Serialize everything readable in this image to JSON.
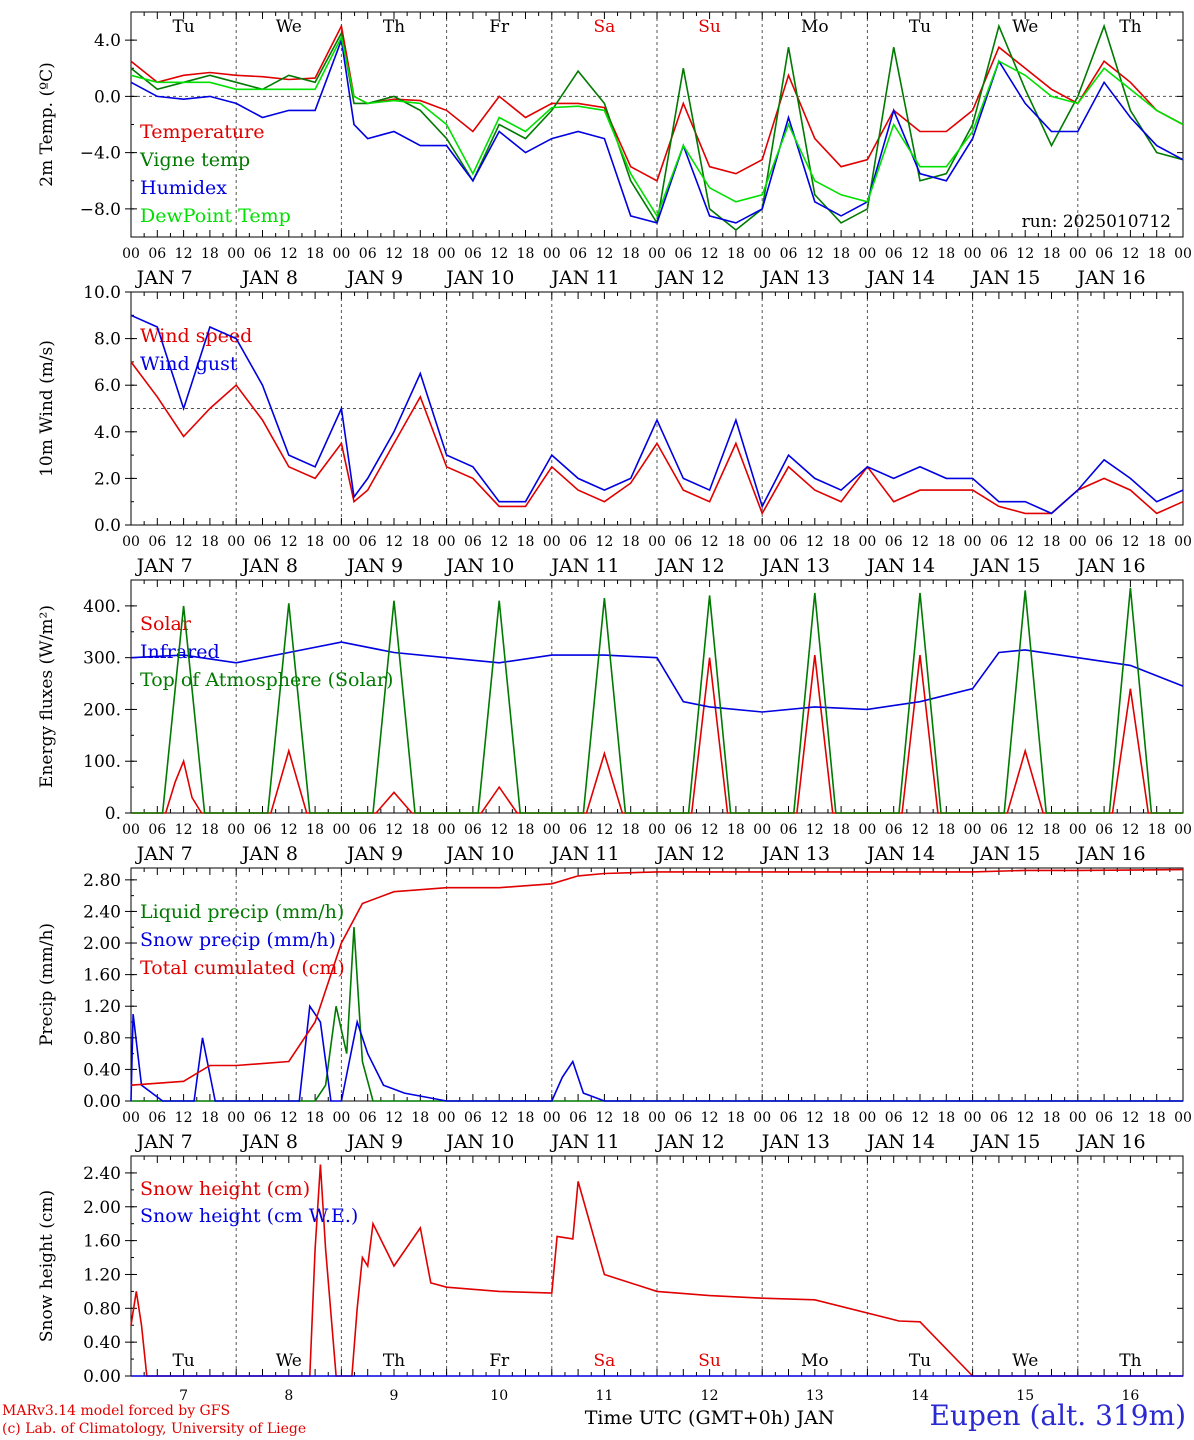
{
  "colors": {
    "red": "#e00000",
    "green": "#007a00",
    "blue": "#0000e0",
    "lightgreen": "#00e000",
    "gray": "#666666"
  },
  "footer": {
    "credit_line1": "MARv3.14 model forced by GFS",
    "credit_line2": "(c) Lab. of Climatology, University of Liege",
    "station": "Eupen (alt. 319m)",
    "run_label": "run: 2025010712"
  },
  "time_axis": {
    "hour_labels": [
      "00",
      "06",
      "12",
      "18"
    ],
    "date_labels": [
      "JAN  7",
      "JAN  8",
      "JAN  9",
      "JAN 10",
      "JAN 11",
      "JAN 12",
      "JAN 13",
      "JAN 14",
      "JAN 15",
      "JAN 16"
    ],
    "day_names": [
      "Tu",
      "We",
      "Th",
      "Fr",
      "Sa",
      "Su",
      "Mo",
      "Tu",
      "We",
      "Th"
    ],
    "weekend_days": [
      4,
      5
    ],
    "day_numbers": [
      "7",
      "8",
      "9",
      "10",
      "11",
      "12",
      "13",
      "14",
      "15",
      "16"
    ],
    "bottom_title": "Time UTC (GMT+0h) JAN",
    "start_date": "2025-01-07T00:00Z",
    "n_days": 10
  },
  "chart_data": [
    {
      "type": "line",
      "ylabel": "2m Temp. (ºC)",
      "ylim": [
        -10,
        6
      ],
      "yticks": [
        -8,
        -4,
        0,
        4
      ],
      "ytick_labels": [
        "−8.0",
        "−4.0",
        "0.0",
        "4.0"
      ],
      "ref_line": 0,
      "series": [
        {
          "name": "Temperature",
          "color": "red",
          "x": [
            0,
            0.25,
            0.5,
            0.75,
            1,
            1.25,
            1.5,
            1.75,
            2,
            2.12,
            2.25,
            2.5,
            2.75,
            3,
            3.25,
            3.5,
            3.75,
            4,
            4.25,
            4.5,
            4.75,
            5,
            5.25,
            5.5,
            5.75,
            6,
            6.25,
            6.5,
            6.75,
            7,
            7.25,
            7.5,
            7.75,
            8,
            8.25,
            8.5,
            8.75,
            9,
            9.25,
            9.5,
            9.75,
            10
          ],
          "values": [
            2.5,
            1,
            1.5,
            1.7,
            1.5,
            1.4,
            1.2,
            1.3,
            5,
            0,
            -0.5,
            -0.2,
            -0.3,
            -1,
            -2.5,
            0,
            -1.5,
            -0.5,
            -0.5,
            -0.8,
            -5,
            -6,
            -0.5,
            -5,
            -5.5,
            -4.5,
            1.5,
            -3,
            -5,
            -4.5,
            -1,
            -2.5,
            -2.5,
            -1,
            3.5,
            2,
            0.5,
            -0.5,
            2.5,
            1,
            -1,
            -2
          ]
        },
        {
          "name": "Vigne temp",
          "color": "green",
          "x": [
            0,
            0.25,
            0.5,
            0.75,
            1,
            1.25,
            1.5,
            1.75,
            2,
            2.12,
            2.25,
            2.5,
            2.75,
            3,
            3.25,
            3.5,
            3.75,
            4,
            4.25,
            4.5,
            4.75,
            5,
            5.25,
            5.5,
            5.75,
            6,
            6.25,
            6.5,
            6.75,
            7,
            7.25,
            7.5,
            7.75,
            8,
            8.25,
            8.5,
            8.75,
            9,
            9.25,
            9.5,
            9.75,
            10
          ],
          "values": [
            2,
            0.5,
            1,
            1.5,
            1,
            0.5,
            1.5,
            1,
            4.5,
            -0.5,
            -0.5,
            0,
            -1,
            -3,
            -6,
            -2,
            -3,
            -1,
            1.8,
            -0.5,
            -6,
            -9,
            2,
            -8,
            -9.5,
            -8,
            3.5,
            -7,
            -9,
            -8,
            3.5,
            -6,
            -5.5,
            -2,
            5,
            0.5,
            -3.5,
            0,
            5,
            -1,
            -4,
            -4.5
          ]
        },
        {
          "name": "Humidex",
          "color": "blue",
          "x": [
            0,
            0.25,
            0.5,
            0.75,
            1,
            1.25,
            1.5,
            1.75,
            2,
            2.12,
            2.25,
            2.5,
            2.75,
            3,
            3.25,
            3.5,
            3.75,
            4,
            4.25,
            4.5,
            4.75,
            5,
            5.25,
            5.5,
            5.75,
            6,
            6.25,
            6.5,
            6.75,
            7,
            7.25,
            7.5,
            7.75,
            8,
            8.25,
            8.5,
            8.75,
            9,
            9.25,
            9.5,
            9.75,
            10
          ],
          "values": [
            1,
            0,
            -0.2,
            0,
            -0.5,
            -1.5,
            -1,
            -1,
            4,
            -2,
            -3,
            -2.5,
            -3.5,
            -3.5,
            -6,
            -2.5,
            -4,
            -3,
            -2.5,
            -3,
            -8.5,
            -9,
            -3.5,
            -8.5,
            -9,
            -8,
            -1.5,
            -7.5,
            -8.5,
            -7.5,
            -1,
            -5.5,
            -6,
            -3,
            2.5,
            -0.5,
            -2.5,
            -2.5,
            1,
            -1.5,
            -3.5,
            -4.5
          ]
        },
        {
          "name": "DewPoint Temp",
          "color": "lightgreen",
          "x": [
            0,
            0.25,
            0.5,
            0.75,
            1,
            1.25,
            1.5,
            1.75,
            2,
            2.12,
            2.25,
            2.5,
            2.75,
            3,
            3.25,
            3.5,
            3.75,
            4,
            4.25,
            4.5,
            4.75,
            5,
            5.25,
            5.5,
            5.75,
            6,
            6.25,
            6.5,
            6.75,
            7,
            7.25,
            7.5,
            7.75,
            8,
            8.25,
            8.5,
            8.75,
            9,
            9.25,
            9.5,
            9.75,
            10
          ],
          "values": [
            1.5,
            1,
            1,
            1,
            0.5,
            0.5,
            0.5,
            0.5,
            4.2,
            0,
            -0.5,
            -0.3,
            -0.5,
            -2,
            -5.5,
            -1.5,
            -2.5,
            -0.8,
            -0.7,
            -1,
            -5.5,
            -8.5,
            -3.5,
            -6.5,
            -7.5,
            -7,
            -2,
            -6,
            -7,
            -7.5,
            -2,
            -5,
            -5,
            -2.5,
            2.5,
            1.5,
            0,
            -0.5,
            2,
            0.5,
            -1,
            -2
          ]
        }
      ]
    },
    {
      "type": "line",
      "ylabel": "10m Wind (m/s)",
      "ylim": [
        0,
        10
      ],
      "yticks": [
        0,
        2,
        4,
        6,
        8,
        10
      ],
      "ytick_labels": [
        "0.0",
        "2.0",
        "4.0",
        "6.0",
        "8.0",
        "10.0"
      ],
      "ref_line": 5,
      "series": [
        {
          "name": "Wind speed",
          "color": "red",
          "x": [
            0,
            0.25,
            0.5,
            0.75,
            1,
            1.25,
            1.5,
            1.75,
            2,
            2.12,
            2.25,
            2.5,
            2.75,
            3,
            3.25,
            3.5,
            3.75,
            4,
            4.25,
            4.5,
            4.75,
            5,
            5.25,
            5.5,
            5.75,
            6,
            6.25,
            6.5,
            6.75,
            7,
            7.25,
            7.5,
            7.75,
            8,
            8.25,
            8.5,
            8.75,
            9,
            9.25,
            9.5,
            9.75,
            10
          ],
          "values": [
            7,
            5.5,
            3.8,
            5,
            6,
            4.5,
            2.5,
            2,
            3.5,
            1,
            1.5,
            3.5,
            5.5,
            2.5,
            2,
            0.8,
            0.8,
            2.5,
            1.5,
            1,
            1.8,
            3.5,
            1.5,
            1,
            3.5,
            0.5,
            2.5,
            1.5,
            1,
            2.5,
            1,
            1.5,
            1.5,
            1.5,
            0.8,
            0.5,
            0.5,
            1.5,
            2,
            1.5,
            0.5,
            1
          ]
        },
        {
          "name": "Wind gust",
          "color": "blue",
          "x": [
            0,
            0.25,
            0.5,
            0.75,
            1,
            1.25,
            1.5,
            1.75,
            2,
            2.12,
            2.25,
            2.5,
            2.75,
            3,
            3.25,
            3.5,
            3.75,
            4,
            4.25,
            4.5,
            4.75,
            5,
            5.25,
            5.5,
            5.75,
            6,
            6.25,
            6.5,
            6.75,
            7,
            7.25,
            7.5,
            7.75,
            8,
            8.25,
            8.5,
            8.75,
            9,
            9.25,
            9.5,
            9.75,
            10
          ],
          "values": [
            9,
            8.5,
            5,
            8.5,
            8,
            6,
            3,
            2.5,
            5,
            1.2,
            2,
            4,
            6.5,
            3,
            2.5,
            1,
            1,
            3,
            2,
            1.5,
            2,
            4.5,
            2,
            1.5,
            4.5,
            0.8,
            3,
            2,
            1.5,
            2.5,
            2,
            2.5,
            2,
            2,
            1,
            1,
            0.5,
            1.5,
            2.8,
            2,
            1,
            1.5
          ]
        }
      ]
    },
    {
      "type": "line",
      "ylabel": "Energy fluxes (W/m²)",
      "ylim": [
        0,
        450
      ],
      "yticks": [
        0,
        100,
        200,
        300,
        400
      ],
      "ytick_labels": [
        "0.",
        "100.",
        "200.",
        "300.",
        "400."
      ],
      "series": [
        {
          "name": "Solar",
          "color": "red",
          "x": [
            0,
            0.33,
            0.42,
            0.5,
            0.58,
            0.67,
            1,
            1.33,
            1.5,
            1.67,
            2,
            2.33,
            2.5,
            2.67,
            3,
            3.33,
            3.5,
            3.67,
            4,
            4.33,
            4.5,
            4.67,
            5,
            5.33,
            5.5,
            5.67,
            6,
            6.33,
            6.5,
            6.67,
            7,
            7.33,
            7.5,
            7.67,
            8,
            8.33,
            8.5,
            8.67,
            9,
            9.33,
            9.5,
            9.67,
            10
          ],
          "values": [
            0,
            0,
            60,
            100,
            30,
            0,
            0,
            0,
            120,
            0,
            0,
            0,
            40,
            0,
            0,
            0,
            50,
            0,
            0,
            0,
            115,
            0,
            0,
            0,
            300,
            0,
            0,
            0,
            305,
            0,
            0,
            0,
            305,
            0,
            0,
            0,
            120,
            0,
            0,
            0,
            240,
            0,
            0
          ]
        },
        {
          "name": "Infrared",
          "color": "blue",
          "x": [
            0,
            0.5,
            1,
            1.5,
            2,
            2.5,
            3,
            3.5,
            4,
            4.5,
            5,
            5.25,
            5.5,
            6,
            6.5,
            7,
            7.5,
            8,
            8.25,
            8.5,
            9,
            9.5,
            10
          ],
          "values": [
            300,
            305,
            290,
            310,
            330,
            310,
            300,
            290,
            305,
            305,
            300,
            215,
            205,
            195,
            205,
            200,
            215,
            240,
            310,
            315,
            300,
            285,
            245
          ]
        },
        {
          "name": "Top of Atmosphere (Solar)",
          "color": "green",
          "x": [
            0,
            0.3,
            0.5,
            0.7,
            1,
            1.3,
            1.5,
            1.7,
            2,
            2.3,
            2.5,
            2.7,
            3,
            3.3,
            3.5,
            3.7,
            4,
            4.3,
            4.5,
            4.7,
            5,
            5.3,
            5.5,
            5.7,
            6,
            6.3,
            6.5,
            6.7,
            7,
            7.3,
            7.5,
            7.7,
            8,
            8.3,
            8.5,
            8.7,
            9,
            9.3,
            9.5,
            9.7,
            10
          ],
          "values": [
            0,
            0,
            400,
            0,
            0,
            0,
            405,
            0,
            0,
            0,
            410,
            0,
            0,
            0,
            410,
            0,
            0,
            0,
            415,
            0,
            0,
            0,
            420,
            0,
            0,
            0,
            425,
            0,
            0,
            0,
            425,
            0,
            0,
            0,
            430,
            0,
            0,
            0,
            435,
            0,
            0
          ]
        }
      ]
    },
    {
      "type": "line",
      "ylabel": "Precip (mm/h)",
      "ylim": [
        0,
        2.95
      ],
      "yticks": [
        0,
        0.4,
        0.8,
        1.2,
        1.6,
        2.0,
        2.4,
        2.8
      ],
      "ytick_labels": [
        "0.00",
        "0.40",
        "0.80",
        "1.20",
        "1.60",
        "2.00",
        "2.40",
        "2.80"
      ],
      "series": [
        {
          "name": "Liquid precip (mm/h)",
          "color": "green",
          "x": [
            0,
            1.75,
            1.85,
            1.95,
            2.05,
            2.12,
            2.2,
            2.3,
            10
          ],
          "values": [
            0,
            0,
            0.2,
            1.2,
            0.6,
            2.2,
            0.5,
            0,
            0
          ]
        },
        {
          "name": "Snow precip (mm/h)",
          "color": "blue",
          "x": [
            0,
            0.02,
            0.1,
            0.3,
            0.6,
            0.68,
            0.8,
            1.6,
            1.7,
            1.8,
            1.9,
            2,
            2.15,
            2.25,
            2.4,
            2.6,
            3,
            4,
            4.1,
            4.2,
            4.3,
            4.5,
            5,
            10
          ],
          "values": [
            0,
            1.1,
            0.2,
            0,
            0,
            0.8,
            0,
            0,
            1.2,
            1.0,
            0,
            0,
            1.0,
            0.6,
            0.2,
            0.1,
            0,
            0,
            0.3,
            0.5,
            0.1,
            0,
            0,
            0
          ]
        },
        {
          "name": "Total cumulated (cm)",
          "color": "red",
          "x": [
            0,
            0.5,
            0.75,
            1,
            1.5,
            1.75,
            2,
            2.2,
            2.5,
            3,
            3.5,
            4,
            4.25,
            4.5,
            5,
            6,
            7,
            8,
            8.5,
            9,
            10
          ],
          "values": [
            0.2,
            0.25,
            0.45,
            0.45,
            0.5,
            1.0,
            2.0,
            2.5,
            2.65,
            2.7,
            2.7,
            2.75,
            2.85,
            2.88,
            2.9,
            2.9,
            2.9,
            2.9,
            2.92,
            2.92,
            2.93
          ]
        }
      ]
    },
    {
      "type": "line",
      "ylabel": "Snow height (cm)",
      "ylim": [
        0,
        2.6
      ],
      "yticks": [
        0,
        0.4,
        0.8,
        1.2,
        1.6,
        2.0,
        2.4
      ],
      "ytick_labels": [
        "0.00",
        "0.40",
        "0.80",
        "1.20",
        "1.60",
        "2.00",
        "2.40"
      ],
      "series": [
        {
          "name": "Snow height (cm)",
          "color": "red",
          "x": [
            0,
            0.05,
            0.1,
            0.15,
            1.7,
            1.75,
            1.8,
            1.85,
            1.95,
            2.1,
            2.15,
            2.2,
            2.25,
            2.3,
            2.5,
            2.75,
            2.85,
            3,
            3.5,
            4,
            4.05,
            4.2,
            4.25,
            4.5,
            5,
            5.5,
            6,
            6.5,
            7.3,
            7.5,
            8,
            8.5,
            9,
            10
          ],
          "values": [
            0.6,
            1.0,
            0.6,
            0,
            0,
            1.5,
            2.5,
            1.5,
            0,
            0,
            0.8,
            1.4,
            1.3,
            1.8,
            1.3,
            1.75,
            1.1,
            1.05,
            1.0,
            0.98,
            1.65,
            1.62,
            2.3,
            1.2,
            1.0,
            0.95,
            0.92,
            0.9,
            0.65,
            0.64,
            0,
            0,
            0,
            0
          ]
        },
        {
          "name": "Snow height (cm W.E.)",
          "color": "blue",
          "x": [
            0,
            10
          ],
          "values": [
            0,
            0
          ]
        }
      ]
    }
  ]
}
